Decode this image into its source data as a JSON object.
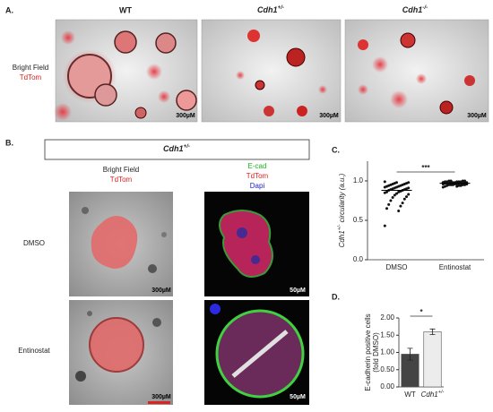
{
  "figure": {
    "panel_a": {
      "label": "A.",
      "columns": [
        "WT",
        "Cdh1+/-",
        "Cdh1-/-"
      ],
      "row_label": [
        "Bright Field",
        "TdTom"
      ],
      "scale_bars": [
        "300µM",
        "300µM",
        "300µM"
      ]
    },
    "panel_b": {
      "label": "B.",
      "header": "Cdh1+/-",
      "col1": [
        "Bright Field",
        "TdTom"
      ],
      "col2": [
        "E-cad",
        "TdTom",
        "Dapi"
      ],
      "rows": [
        "DMSO",
        "Entinostat"
      ],
      "scale_bars": [
        "300µM",
        "50µM",
        "300µM",
        "50µM"
      ]
    }
  },
  "chart_data": [
    {
      "type": "strip",
      "panel": "C.",
      "y_label": "Cdh1+/- circularity (a.u.)",
      "categories": [
        "DMSO",
        "Entinostat"
      ],
      "values": [
        [
          0.43,
          0.62,
          0.65,
          0.68,
          0.7,
          0.72,
          0.75,
          0.77,
          0.79,
          0.8,
          0.82,
          0.83,
          0.84,
          0.85,
          0.86,
          0.86,
          0.87,
          0.88,
          0.88,
          0.89,
          0.89,
          0.9,
          0.9,
          0.91,
          0.91,
          0.92,
          0.92,
          0.93,
          0.93,
          0.94,
          0.94,
          0.95,
          0.95,
          0.96,
          0.96,
          0.97,
          0.97,
          0.98,
          0.98,
          0.99
        ],
        [
          0.92,
          0.93,
          0.93,
          0.94,
          0.94,
          0.94,
          0.95,
          0.95,
          0.95,
          0.95,
          0.96,
          0.96,
          0.96,
          0.96,
          0.96,
          0.97,
          0.97,
          0.97,
          0.97,
          0.97,
          0.97,
          0.98,
          0.98,
          0.98,
          0.98,
          0.98,
          0.98,
          0.99,
          0.99,
          0.99,
          0.99,
          0.99,
          1.0,
          1.0,
          1.0,
          1.0,
          0.95,
          0.96,
          0.97,
          0.98
        ]
      ],
      "means": [
        0.88,
        0.97
      ],
      "color": "#111111",
      "annotation": "***",
      "ylim": [
        0,
        1.25
      ],
      "yticks": [
        {
          "value": 0,
          "label": "0.0"
        },
        0.5,
        {
          "value": 1,
          "label": "1.0"
        }
      ]
    },
    {
      "type": "bar",
      "panel": "D.",
      "y_label": [
        "E-cadherin positive cells",
        "(fold DMSO)"
      ],
      "categories": [
        "WT",
        "Cdh1+/-"
      ],
      "values": [
        0.95,
        1.6
      ],
      "errors": [
        0.17,
        0.08
      ],
      "colors": [
        "#444444",
        "#ececec"
      ],
      "annotation": "*",
      "ylim": [
        0,
        2
      ],
      "yticks": [
        {
          "value": 0,
          "label": "0.00"
        },
        {
          "value": 0.5,
          "label": "0.50"
        },
        {
          "value": 1,
          "label": "1.00"
        },
        {
          "value": 1.5,
          "label": "1.50"
        },
        {
          "value": 2,
          "label": "2.00"
        }
      ]
    }
  ]
}
